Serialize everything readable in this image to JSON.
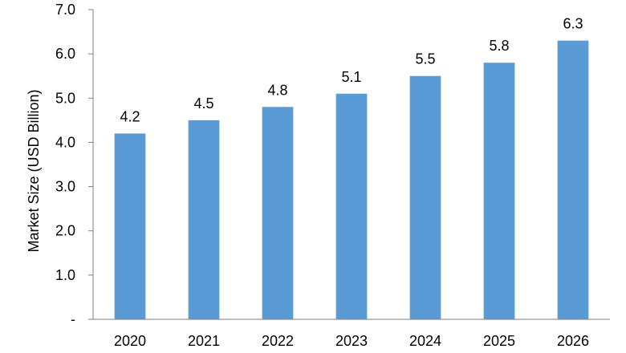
{
  "chart_data": {
    "type": "bar",
    "title": "",
    "xlabel": "",
    "ylabel": "Market Size (USD Billion)",
    "categories": [
      "2020",
      "2021",
      "2022",
      "2023",
      "2024",
      "2025",
      "2026"
    ],
    "values": [
      4.2,
      4.5,
      4.8,
      5.1,
      5.5,
      5.8,
      6.3
    ],
    "data_labels": [
      "4.2",
      "4.5",
      "4.8",
      "5.1",
      "5.5",
      "5.8",
      "6.3"
    ],
    "ylim": [
      0,
      7
    ],
    "yticks": [
      0,
      1,
      2,
      3,
      4,
      5,
      6,
      7
    ],
    "ytick_labels": [
      "-",
      "1.0",
      "2.0",
      "3.0",
      "4.0",
      "5.0",
      "6.0",
      "7.0"
    ],
    "grid": false,
    "legend": "none",
    "colors": {
      "bar": "#5b9bd5",
      "axis": "#7f7f7f",
      "text": "#000000"
    }
  }
}
